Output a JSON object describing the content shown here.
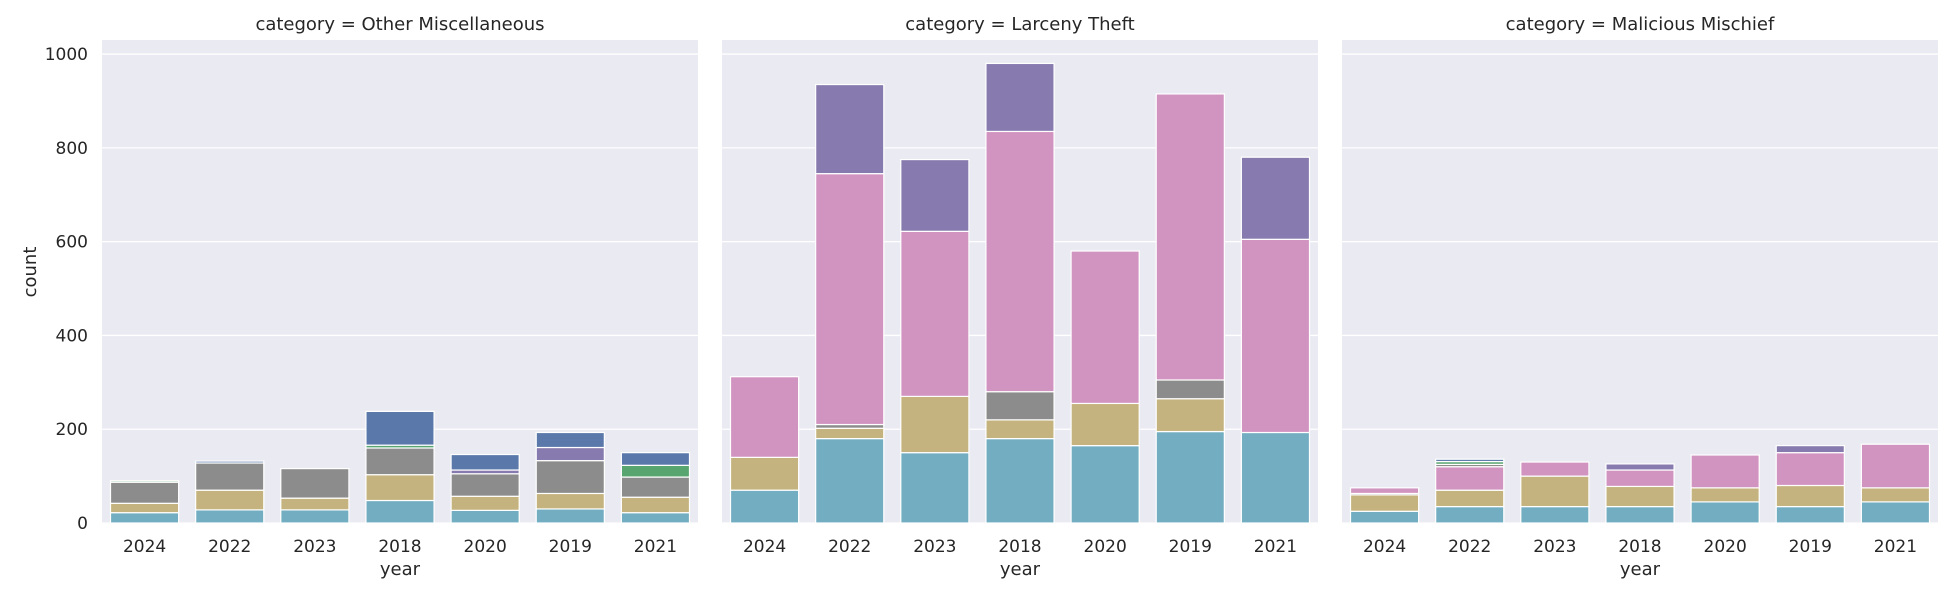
{
  "chart_data": {
    "type": "bar",
    "stacked": true,
    "facet_by": "category",
    "xlabel": "year",
    "ylabel": "count",
    "ylim": [
      0,
      1030
    ],
    "yticks": [
      0,
      200,
      400,
      600,
      800,
      1000
    ],
    "categories": [
      "2024",
      "2022",
      "2023",
      "2018",
      "2020",
      "2019",
      "2021"
    ],
    "grid": true,
    "background": "#EAEAF2",
    "colors": {
      "teal": "#72ADC1",
      "tan": "#C4B37E",
      "gray": "#8C8C8C",
      "pink": "#D193C0",
      "purple": "#867AAE",
      "green": "#58A56F",
      "blue": "#5A78AA"
    },
    "panels": [
      {
        "title": "category = Other Miscellaneous",
        "bars": [
          [
            {
              "v": 22,
              "c": "teal"
            },
            {
              "v": 20,
              "c": "tan"
            },
            {
              "v": 45,
              "c": "gray"
            },
            {
              "v": 3,
              "c": "green"
            }
          ],
          [
            {
              "v": 28,
              "c": "teal"
            },
            {
              "v": 42,
              "c": "tan"
            },
            {
              "v": 58,
              "c": "gray"
            },
            {
              "v": 4,
              "c": "blue"
            }
          ],
          [
            {
              "v": 28,
              "c": "teal"
            },
            {
              "v": 25,
              "c": "tan"
            },
            {
              "v": 63,
              "c": "gray"
            }
          ],
          [
            {
              "v": 48,
              "c": "teal"
            },
            {
              "v": 55,
              "c": "tan"
            },
            {
              "v": 57,
              "c": "gray"
            },
            {
              "v": 6,
              "c": "green"
            },
            {
              "v": 72,
              "c": "blue"
            }
          ],
          [
            {
              "v": 27,
              "c": "teal"
            },
            {
              "v": 30,
              "c": "tan"
            },
            {
              "v": 48,
              "c": "gray"
            },
            {
              "v": 8,
              "c": "purple"
            },
            {
              "v": 33,
              "c": "blue"
            }
          ],
          [
            {
              "v": 30,
              "c": "teal"
            },
            {
              "v": 33,
              "c": "tan"
            },
            {
              "v": 70,
              "c": "gray"
            },
            {
              "v": 28,
              "c": "purple"
            },
            {
              "v": 32,
              "c": "blue"
            }
          ],
          [
            {
              "v": 22,
              "c": "teal"
            },
            {
              "v": 33,
              "c": "tan"
            },
            {
              "v": 43,
              "c": "gray"
            },
            {
              "v": 25,
              "c": "green"
            },
            {
              "v": 27,
              "c": "blue"
            }
          ]
        ]
      },
      {
        "title": "category = Larceny Theft",
        "bars": [
          [
            {
              "v": 70,
              "c": "teal"
            },
            {
              "v": 70,
              "c": "tan"
            },
            {
              "v": 172,
              "c": "pink"
            }
          ],
          [
            {
              "v": 180,
              "c": "teal"
            },
            {
              "v": 22,
              "c": "tan"
            },
            {
              "v": 8,
              "c": "gray"
            },
            {
              "v": 535,
              "c": "pink"
            },
            {
              "v": 190,
              "c": "purple"
            }
          ],
          [
            {
              "v": 150,
              "c": "teal"
            },
            {
              "v": 120,
              "c": "tan"
            },
            {
              "v": 352,
              "c": "pink"
            },
            {
              "v": 153,
              "c": "purple"
            }
          ],
          [
            {
              "v": 180,
              "c": "teal"
            },
            {
              "v": 40,
              "c": "tan"
            },
            {
              "v": 60,
              "c": "gray"
            },
            {
              "v": 555,
              "c": "pink"
            },
            {
              "v": 145,
              "c": "purple"
            }
          ],
          [
            {
              "v": 165,
              "c": "teal"
            },
            {
              "v": 90,
              "c": "tan"
            },
            {
              "v": 325,
              "c": "pink"
            }
          ],
          [
            {
              "v": 195,
              "c": "teal"
            },
            {
              "v": 70,
              "c": "tan"
            },
            {
              "v": 40,
              "c": "gray"
            },
            {
              "v": 610,
              "c": "pink"
            }
          ],
          [
            {
              "v": 193,
              "c": "teal"
            },
            {
              "v": 412,
              "c": "pink"
            },
            {
              "v": 175,
              "c": "purple"
            }
          ]
        ]
      },
      {
        "title": "category = Malicious Mischief",
        "bars": [
          [
            {
              "v": 25,
              "c": "teal"
            },
            {
              "v": 35,
              "c": "tan"
            },
            {
              "v": 3,
              "c": "gray"
            },
            {
              "v": 12,
              "c": "pink"
            }
          ],
          [
            {
              "v": 35,
              "c": "teal"
            },
            {
              "v": 35,
              "c": "tan"
            },
            {
              "v": 50,
              "c": "pink"
            },
            {
              "v": 5,
              "c": "gray"
            },
            {
              "v": 6,
              "c": "green"
            },
            {
              "v": 5,
              "c": "blue"
            }
          ],
          [
            {
              "v": 35,
              "c": "teal"
            },
            {
              "v": 65,
              "c": "tan"
            },
            {
              "v": 30,
              "c": "pink"
            }
          ],
          [
            {
              "v": 35,
              "c": "teal"
            },
            {
              "v": 43,
              "c": "tan"
            },
            {
              "v": 35,
              "c": "pink"
            },
            {
              "v": 13,
              "c": "purple"
            }
          ],
          [
            {
              "v": 45,
              "c": "teal"
            },
            {
              "v": 30,
              "c": "tan"
            },
            {
              "v": 70,
              "c": "pink"
            }
          ],
          [
            {
              "v": 35,
              "c": "teal"
            },
            {
              "v": 45,
              "c": "tan"
            },
            {
              "v": 70,
              "c": "pink"
            },
            {
              "v": 15,
              "c": "purple"
            }
          ],
          [
            {
              "v": 45,
              "c": "teal"
            },
            {
              "v": 30,
              "c": "tan"
            },
            {
              "v": 93,
              "c": "pink"
            }
          ]
        ]
      }
    ]
  }
}
